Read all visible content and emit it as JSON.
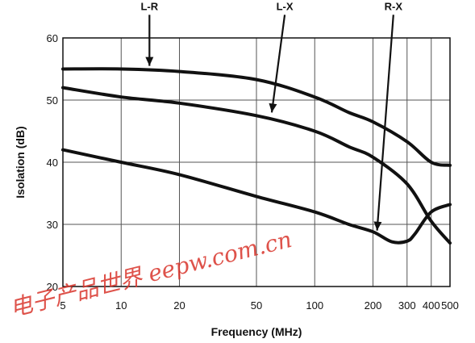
{
  "chart_data": {
    "type": "line",
    "title": "",
    "xlabel": "Frequency (MHz)",
    "ylabel": "Isolation (dB)",
    "xscale": "log",
    "xlim": [
      5,
      500
    ],
    "ylim": [
      20,
      60
    ],
    "xticks": [
      5,
      10,
      20,
      50,
      100,
      200,
      300,
      400,
      500
    ],
    "yticks": [
      20,
      30,
      40,
      50,
      60
    ],
    "grid": true,
    "series": [
      {
        "name": "L-R",
        "x": [
          5,
          10,
          20,
          50,
          100,
          150,
          200,
          300,
          400,
          500
        ],
        "y": [
          55,
          55,
          54.6,
          53.3,
          50.5,
          48,
          46.5,
          43.3,
          40,
          39.5
        ]
      },
      {
        "name": "L-X",
        "x": [
          5,
          10,
          20,
          50,
          100,
          150,
          200,
          300,
          400,
          500
        ],
        "y": [
          52,
          50.5,
          49.5,
          47.5,
          45,
          42.5,
          40.8,
          36.5,
          30.5,
          27
        ]
      },
      {
        "name": "R-X",
        "x": [
          5,
          10,
          20,
          50,
          100,
          150,
          200,
          250,
          300,
          330,
          400,
          500
        ],
        "y": [
          42,
          40,
          38,
          34.5,
          32,
          30,
          28.8,
          27.2,
          27.3,
          28.5,
          32,
          33.2
        ]
      }
    ],
    "annotations": [
      {
        "label": "L-R",
        "series": "L-R",
        "text_x": 14,
        "text_y": 64.5,
        "arrow_to_x": 14,
        "arrow_to_y": 55.5
      },
      {
        "label": "L-X",
        "series": "L-X",
        "text_x": 70,
        "text_y": 64.5,
        "arrow_to_x": 60,
        "arrow_to_y": 48
      },
      {
        "label": "R-X",
        "series": "R-X",
        "text_x": 255,
        "text_y": 64.5,
        "arrow_to_x": 210,
        "arrow_to_y": 29
      }
    ],
    "watermark": "电子产品世界 eepw.com.cn"
  }
}
